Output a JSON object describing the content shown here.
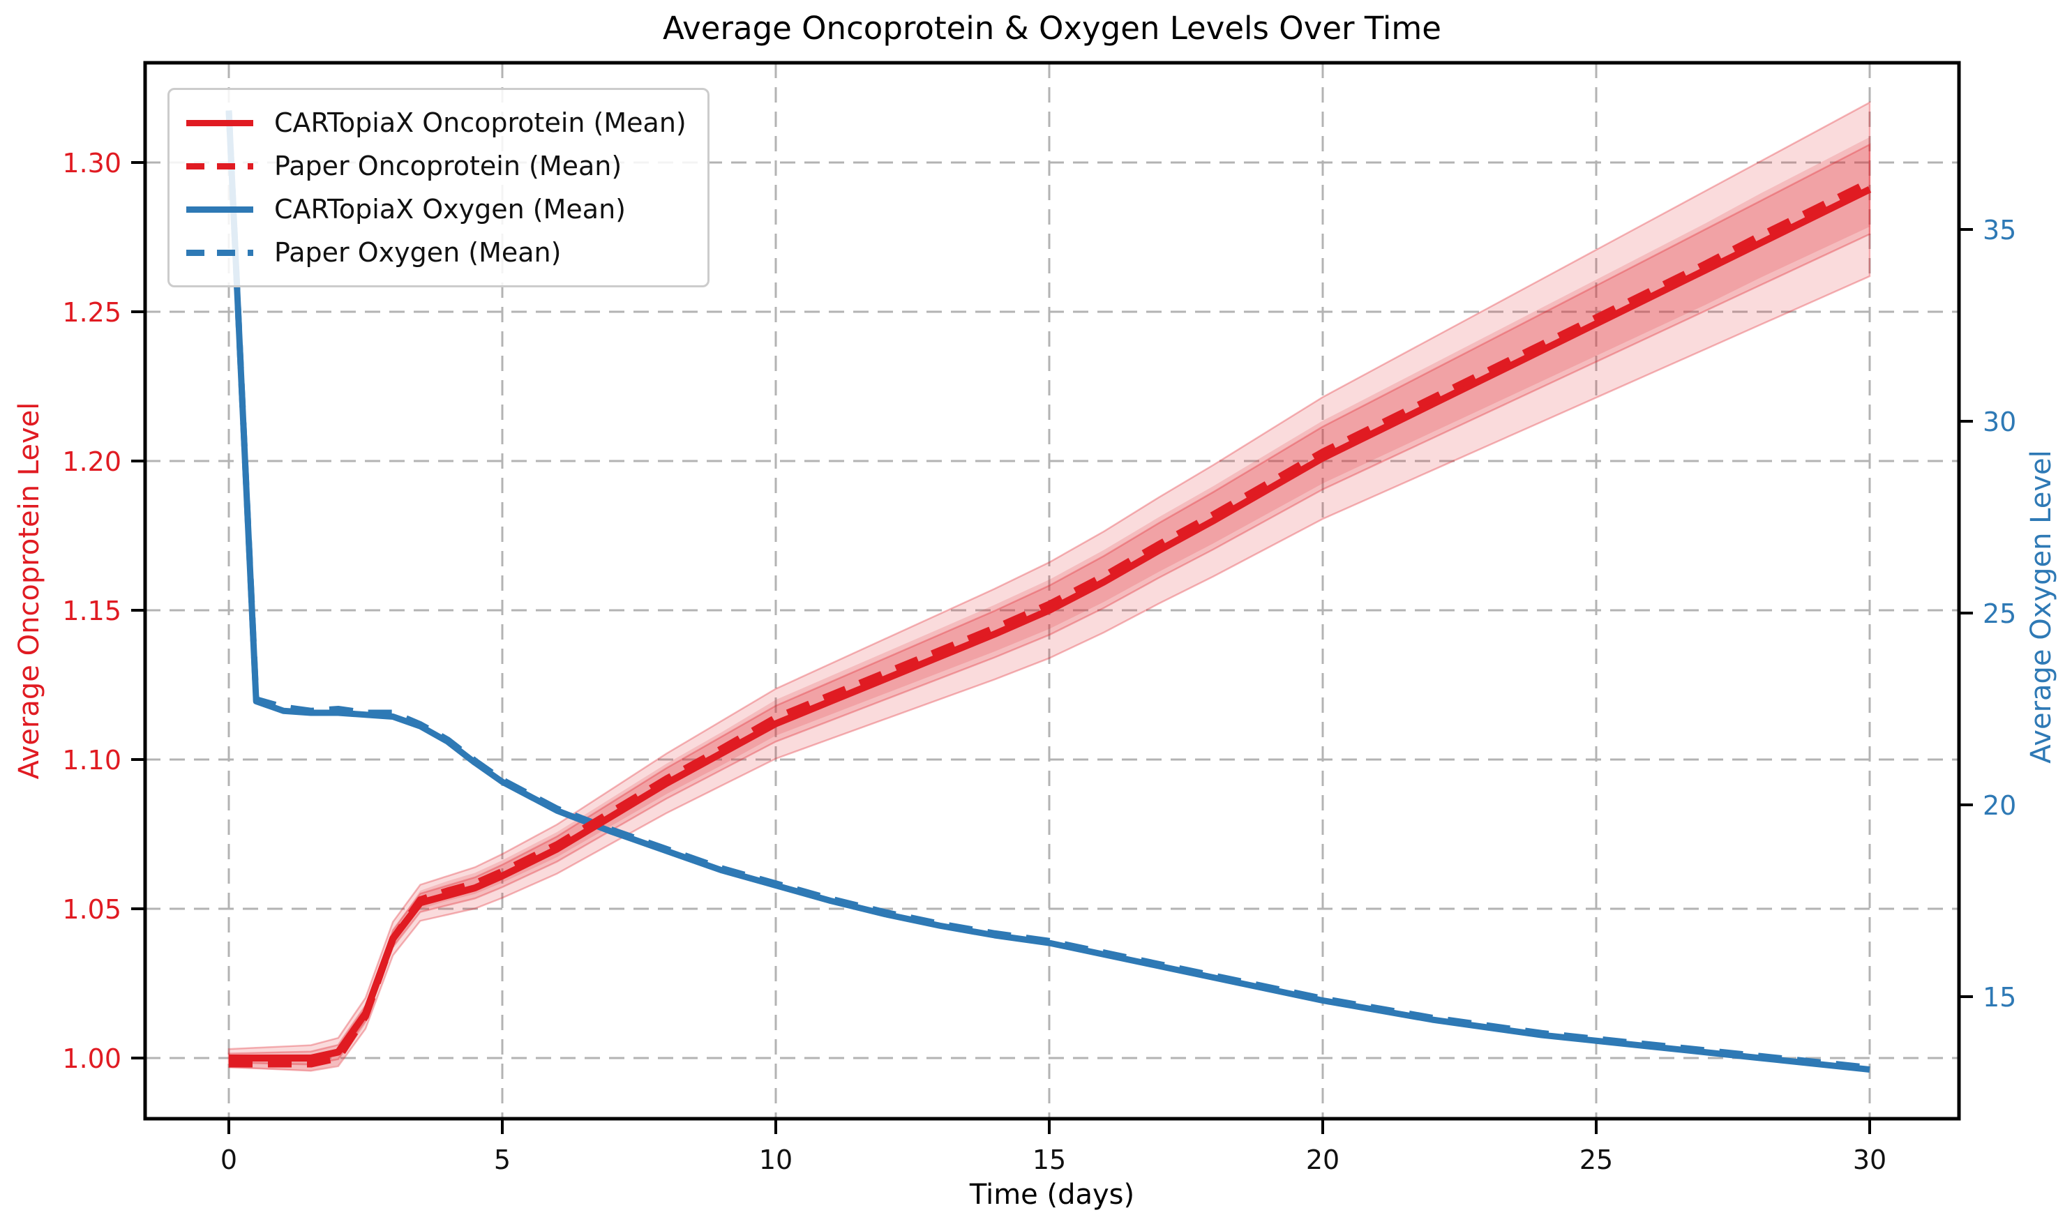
{
  "title": "Average Oncoprotein & Oxygen Levels Over Time",
  "xlabel": "Time (days)",
  "ylabel_left": "Average Oncoprotein Level",
  "ylabel_right": "Average Oxygen Level",
  "colors": {
    "oncoprotein_red": "#e01b22",
    "oncoprotein_band": "rgba(224,32,40,0.16)",
    "oncoprotein_band_edge": "rgba(224,32,40,0.32)",
    "oxygen_blue": "#2e79b5",
    "grid_gray": "#b3b3b3",
    "spine_black": "#000000",
    "tick_label_black": "#111111"
  },
  "legend": {
    "items": [
      {
        "label": "CARTopiaX Oncoprotein (Mean)",
        "color": "#e01b22",
        "style": "solid"
      },
      {
        "label": "Paper Oncoprotein (Mean)",
        "color": "#e01b22",
        "style": "dashed"
      },
      {
        "label": "CARTopiaX Oxygen (Mean)",
        "color": "#2e79b5",
        "style": "solid"
      },
      {
        "label": "Paper Oxygen (Mean)",
        "color": "#2e79b5",
        "style": "dashed"
      }
    ]
  },
  "axes": {
    "x_tick_labels": [
      "0",
      "5",
      "10",
      "15",
      "20",
      "25",
      "30"
    ],
    "x_tick_values": [
      0,
      5,
      10,
      15,
      20,
      25,
      30
    ],
    "y_left_tick_labels": [
      "1.00",
      "1.05",
      "1.10",
      "1.15",
      "1.20",
      "1.25",
      "1.30"
    ],
    "y_left_tick_values": [
      1.0,
      1.05,
      1.1,
      1.15,
      1.2,
      1.25,
      1.3
    ],
    "y_right_tick_labels": [
      "15",
      "20",
      "25",
      "30",
      "35"
    ],
    "y_right_tick_values": [
      15,
      20,
      25,
      30,
      35
    ]
  },
  "chart_data": {
    "type": "line",
    "title": "Average Oncoprotein & Oxygen Levels Over Time",
    "xlabel": "Time (days)",
    "ylabel_left": "Average Oncoprotein Level",
    "ylabel_right": "Average Oxygen Level",
    "xlim": [
      -1.5,
      31.5
    ],
    "ylim_left": [
      0.98,
      1.333
    ],
    "ylim_right": [
      11.8,
      39.35
    ],
    "grid": true,
    "legend_position": "upper left",
    "x": [
      0,
      0.5,
      1,
      1.5,
      2,
      2.5,
      3,
      3.5,
      4,
      4.5,
      5,
      6,
      7,
      8,
      9,
      10,
      11,
      12,
      13,
      14,
      15,
      16,
      17,
      18,
      19,
      20,
      21,
      22,
      23,
      24,
      25,
      26,
      27,
      28,
      29,
      30
    ],
    "series": [
      {
        "name": "CARTopiaX Oncoprotein (Mean)",
        "axis": "left",
        "style": "solid",
        "color": "#e01b22",
        "values": [
          1.0,
          1.0,
          1.0,
          1.0,
          1.002,
          1.015,
          1.04,
          1.052,
          1.0545,
          1.057,
          1.061,
          1.07,
          1.081,
          1.092,
          1.102,
          1.112,
          1.1195,
          1.127,
          1.1345,
          1.142,
          1.15,
          1.1595,
          1.17,
          1.18,
          1.1905,
          1.201,
          1.21,
          1.219,
          1.228,
          1.237,
          1.246,
          1.255,
          1.264,
          1.273,
          1.282,
          1.291
        ]
      },
      {
        "name": "Paper Oncoprotein (Mean)",
        "axis": "left",
        "style": "dashed",
        "color": "#e01b22",
        "values": [
          0.998,
          0.998,
          0.998,
          0.998,
          1.0,
          1.014,
          1.04,
          1.053,
          1.056,
          1.0585,
          1.0625,
          1.0715,
          1.0825,
          1.0935,
          1.1035,
          1.114,
          1.1215,
          1.129,
          1.1365,
          1.144,
          1.152,
          1.1615,
          1.172,
          1.182,
          1.1925,
          1.203,
          1.212,
          1.221,
          1.23,
          1.239,
          1.248,
          1.257,
          1.266,
          1.2755,
          1.2845,
          1.2935
        ]
      },
      {
        "name": "CARTopiaX Oxygen (Mean)",
        "axis": "right",
        "style": "solid",
        "color": "#2e79b5",
        "values": [
          38.1,
          22.7,
          22.45,
          22.4,
          22.4,
          22.35,
          22.3,
          22.05,
          21.65,
          21.1,
          20.6,
          19.85,
          19.3,
          18.8,
          18.3,
          17.9,
          17.5,
          17.15,
          16.85,
          16.6,
          16.4,
          16.1,
          15.8,
          15.5,
          15.2,
          14.9,
          14.65,
          14.4,
          14.2,
          14.0,
          13.85,
          13.7,
          13.55,
          13.4,
          13.25,
          13.1
        ]
      },
      {
        "name": "Paper Oxygen (Mean)",
        "axis": "right",
        "style": "dashed",
        "color": "#2e79b5",
        "values": [
          38.1,
          22.75,
          22.55,
          22.45,
          22.5,
          22.4,
          22.4,
          22.1,
          21.7,
          21.15,
          20.65,
          19.9,
          19.35,
          18.85,
          18.35,
          17.95,
          17.55,
          17.2,
          16.9,
          16.65,
          16.45,
          16.15,
          15.85,
          15.55,
          15.25,
          14.95,
          14.7,
          14.45,
          14.25,
          14.05,
          13.9,
          13.75,
          13.6,
          13.45,
          13.3,
          13.15
        ]
      }
    ],
    "bands": {
      "applies_to": "oncoprotein series",
      "outer_halfwidth": "0.003 + 0.00087 * day  (≈ ±0.029 at day 30)",
      "inner_halfwidth": "0.0015 + 0.00045 * day (≈ ±0.015 at day 30)"
    }
  }
}
